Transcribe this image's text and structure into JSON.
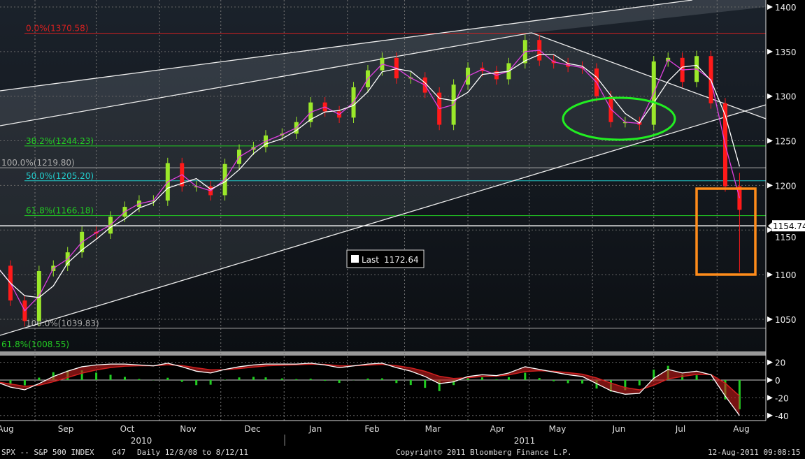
{
  "chart_data": [
    {
      "type": "candlestick",
      "title": "",
      "yaxis_side": "right",
      "ylim": [
        1020,
        1410
      ],
      "yticks": [
        1050,
        1100,
        1150,
        1200,
        1250,
        1300,
        1350,
        1400
      ],
      "grid": "dashed",
      "x": [
        "2010-08-13",
        "2010-08-20",
        "2010-08-27",
        "2010-09-03",
        "2010-09-10",
        "2010-09-17",
        "2010-09-24",
        "2010-10-01",
        "2010-10-08",
        "2010-10-15",
        "2010-10-22",
        "2010-10-29",
        "2010-11-05",
        "2010-11-12",
        "2010-11-19",
        "2010-11-26",
        "2010-12-03",
        "2010-12-10",
        "2010-12-17",
        "2010-12-23",
        "2010-12-31",
        "2011-01-07",
        "2011-01-14",
        "2011-01-21",
        "2011-01-28",
        "2011-02-04",
        "2011-02-11",
        "2011-02-18",
        "2011-02-25",
        "2011-03-04",
        "2011-03-11",
        "2011-03-18",
        "2011-03-25",
        "2011-04-01",
        "2011-04-08",
        "2011-04-15",
        "2011-04-21",
        "2011-04-29",
        "2011-05-06",
        "2011-05-13",
        "2011-05-20",
        "2011-05-27",
        "2011-06-03",
        "2011-06-10",
        "2011-06-17",
        "2011-06-24",
        "2011-07-01",
        "2011-07-08",
        "2011-07-15",
        "2011-07-22",
        "2011-07-29",
        "2011-08-05",
        "2011-08-12"
      ],
      "close": [
        1110,
        1071,
        1048,
        1104,
        1110,
        1125,
        1148,
        1146,
        1165,
        1176,
        1183,
        1183,
        1225,
        1199,
        1199,
        1189,
        1224,
        1240,
        1243,
        1256,
        1258,
        1271,
        1293,
        1283,
        1276,
        1310,
        1329,
        1343,
        1320,
        1321,
        1304,
        1268,
        1313,
        1332,
        1328,
        1319,
        1337,
        1363,
        1340,
        1337,
        1333,
        1331,
        1300,
        1271,
        1271,
        1268,
        1339,
        1343,
        1316,
        1345,
        1292,
        1199,
        1172.64
      ],
      "fib_levels": [
        {
          "label": "0.0%(1370.58)",
          "value": 1370.58,
          "color": "#d42020"
        },
        {
          "label": "38.2%(1244.23)",
          "value": 1244.23,
          "color": "#22cc22"
        },
        {
          "label": "100.0%(1219.80)",
          "value": 1219.8,
          "color": "#aaaaaa"
        },
        {
          "label": "50.0%(1205.20)",
          "value": 1205.2,
          "color": "#22cccc"
        },
        {
          "label": "61.8%(1166.18)",
          "value": 1166.18,
          "color": "#22cc22"
        },
        {
          "label": "100.0%(1039.83)",
          "value": 1039.83,
          "color": "#aaaaaa"
        },
        {
          "label": "61.8%(1008.55)",
          "value": 1008.55,
          "color": "#22cc22"
        }
      ],
      "current_price": "1154.74",
      "legend": {
        "label": "Last",
        "value": "1172.64"
      },
      "annotations": [
        "green-ellipse",
        "orange-rectangle",
        "trend-lines"
      ]
    },
    {
      "type": "macd",
      "ylim": [
        -45,
        25
      ],
      "yticks": [
        20,
        0,
        -20,
        -40
      ],
      "macd": [
        -2,
        -8,
        -11,
        -4,
        4,
        10,
        15,
        17,
        18,
        18,
        17,
        16,
        19,
        15,
        10,
        8,
        12,
        15,
        17,
        18,
        18,
        18,
        19,
        17,
        14,
        16,
        18,
        19,
        14,
        10,
        4,
        -4,
        -2,
        4,
        6,
        5,
        8,
        15,
        12,
        9,
        6,
        4,
        -4,
        -12,
        -16,
        -15,
        2,
        12,
        8,
        10,
        6,
        -18,
        -40
      ]
    }
  ],
  "x_axis": {
    "months": [
      "Aug",
      "Sep",
      "Oct",
      "Nov",
      "Dec",
      "Jan",
      "Feb",
      "Mar",
      "Apr",
      "May",
      "Jun",
      "Jul",
      "Aug"
    ],
    "years": [
      "2010",
      "2011"
    ]
  },
  "footer": {
    "ticker": "SPX -- S&P 500 INDEX",
    "code": "G47",
    "period": "Daily  12/8/08 to 8/12/11",
    "copyright": "Copyright© 2011 Bloomberg Finance L.P.",
    "timestamp": "12-Aug-2011 09:08:15"
  },
  "colors": {
    "up": "#9be82a",
    "down": "#ff1a1a",
    "ma": "#ffffff",
    "fast": "#e040e0",
    "ellipse": "#22ee22",
    "box": "#ff8c1a"
  }
}
